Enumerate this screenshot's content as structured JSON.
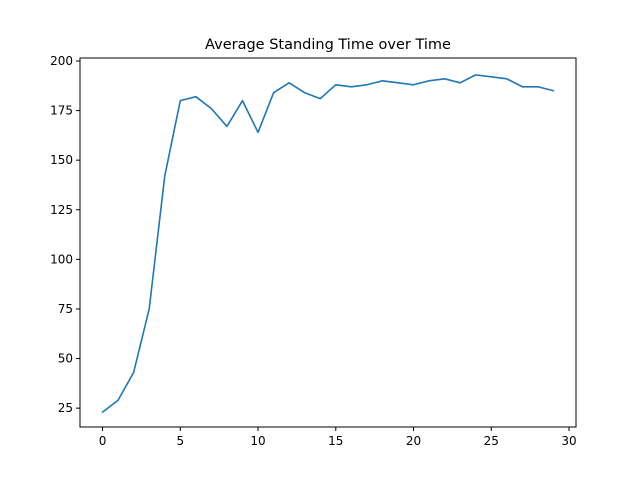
{
  "chart_data": {
    "type": "line",
    "title": "Average Standing Time over Time",
    "xlabel": "",
    "ylabel": "",
    "xlim": [
      -1.45,
      30.45
    ],
    "ylim": [
      15.5,
      201.5
    ],
    "x_ticks": [
      0,
      5,
      10,
      15,
      20,
      25,
      30
    ],
    "y_ticks": [
      25,
      50,
      75,
      100,
      125,
      150,
      175,
      200
    ],
    "grid": false,
    "series": [
      {
        "color": "#1f77b4",
        "x": [
          0,
          1,
          2,
          3,
          4,
          5,
          6,
          7,
          8,
          9,
          10,
          11,
          12,
          13,
          14,
          15,
          16,
          17,
          18,
          19,
          20,
          21,
          22,
          23,
          24,
          25,
          26,
          27,
          28,
          29
        ],
        "y": [
          23,
          29,
          43,
          75,
          142,
          180,
          182,
          176,
          167,
          180,
          164,
          184,
          189,
          184,
          181,
          188,
          187,
          188,
          190,
          189,
          188,
          190,
          191,
          189,
          193,
          192,
          191,
          187,
          187,
          185
        ]
      }
    ]
  }
}
